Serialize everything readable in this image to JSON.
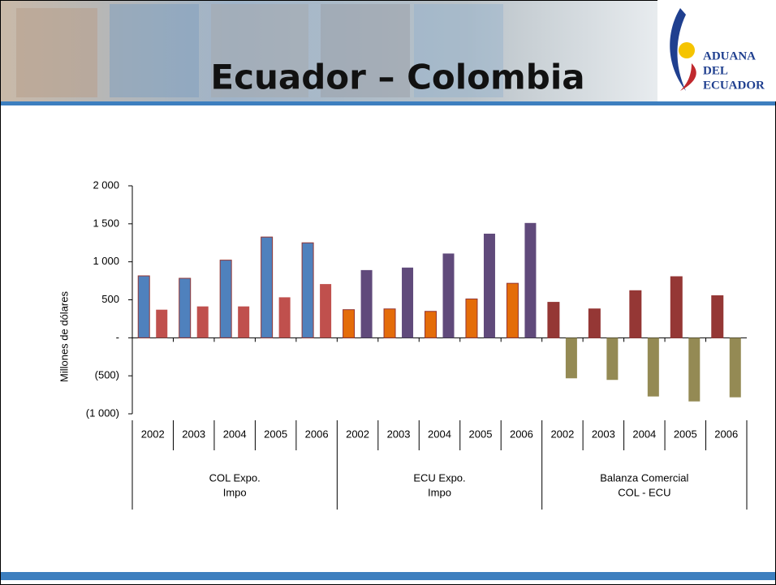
{
  "header": {
    "title": "Ecuador – Colombia",
    "logo": [
      "ADUANA",
      "DEL",
      "ECUADOR"
    ]
  },
  "chart_data": {
    "type": "bar",
    "ylabel": "Millones de dólares",
    "categories": [
      "2002",
      "2003",
      "2004",
      "2005",
      "2006",
      "2002",
      "2003",
      "2004",
      "2005",
      "2006",
      "2002",
      "2003",
      "2004",
      "2005",
      "2006"
    ],
    "groups": [
      {
        "label": [
          "COL Expo.",
          "Impo"
        ]
      },
      {
        "label": [
          "ECU Expo.",
          "Impo"
        ]
      },
      {
        "label": [
          "Balanza Comercial",
          "COL - ECU"
        ]
      }
    ],
    "series": [
      {
        "color": "#4f81bd",
        "values": [
          815,
          783,
          1022,
          1326,
          1250,
          null,
          null,
          null,
          null,
          null,
          null,
          null,
          null,
          null,
          null
        ]
      },
      {
        "color": "#c0504d",
        "values": [
          370,
          413,
          413,
          533,
          707,
          null,
          null,
          null,
          null,
          null,
          null,
          null,
          null,
          null,
          null
        ]
      },
      {
        "color": "#e46c0a",
        "values": [
          null,
          null,
          null,
          null,
          null,
          370,
          380,
          348,
          511,
          717,
          null,
          null,
          null,
          null,
          null
        ]
      },
      {
        "color": "#604a7b",
        "values": [
          null,
          null,
          null,
          null,
          null,
          891,
          924,
          1109,
          1370,
          1511,
          null,
          null,
          null,
          null,
          null
        ]
      },
      {
        "color": "#953735",
        "values": [
          null,
          null,
          null,
          null,
          null,
          null,
          null,
          null,
          null,
          null,
          467,
          380,
          620,
          804,
          554
        ]
      },
      {
        "color": "#948a54",
        "values": [
          null,
          null,
          null,
          null,
          null,
          null,
          null,
          null,
          null,
          null,
          -533,
          -554,
          -772,
          -837,
          -783
        ]
      }
    ],
    "ylim": [
      -1000,
      2000
    ],
    "yticks": [
      {
        "value": 2000,
        "label": "2 000"
      },
      {
        "value": 1500,
        "label": "1 500"
      },
      {
        "value": 1000,
        "label": "1 000"
      },
      500,
      {
        "value": 0,
        "label": "-"
      },
      {
        "value": -500,
        "label": "(500)"
      },
      {
        "value": -1000,
        "label": "(1 000)"
      }
    ]
  }
}
